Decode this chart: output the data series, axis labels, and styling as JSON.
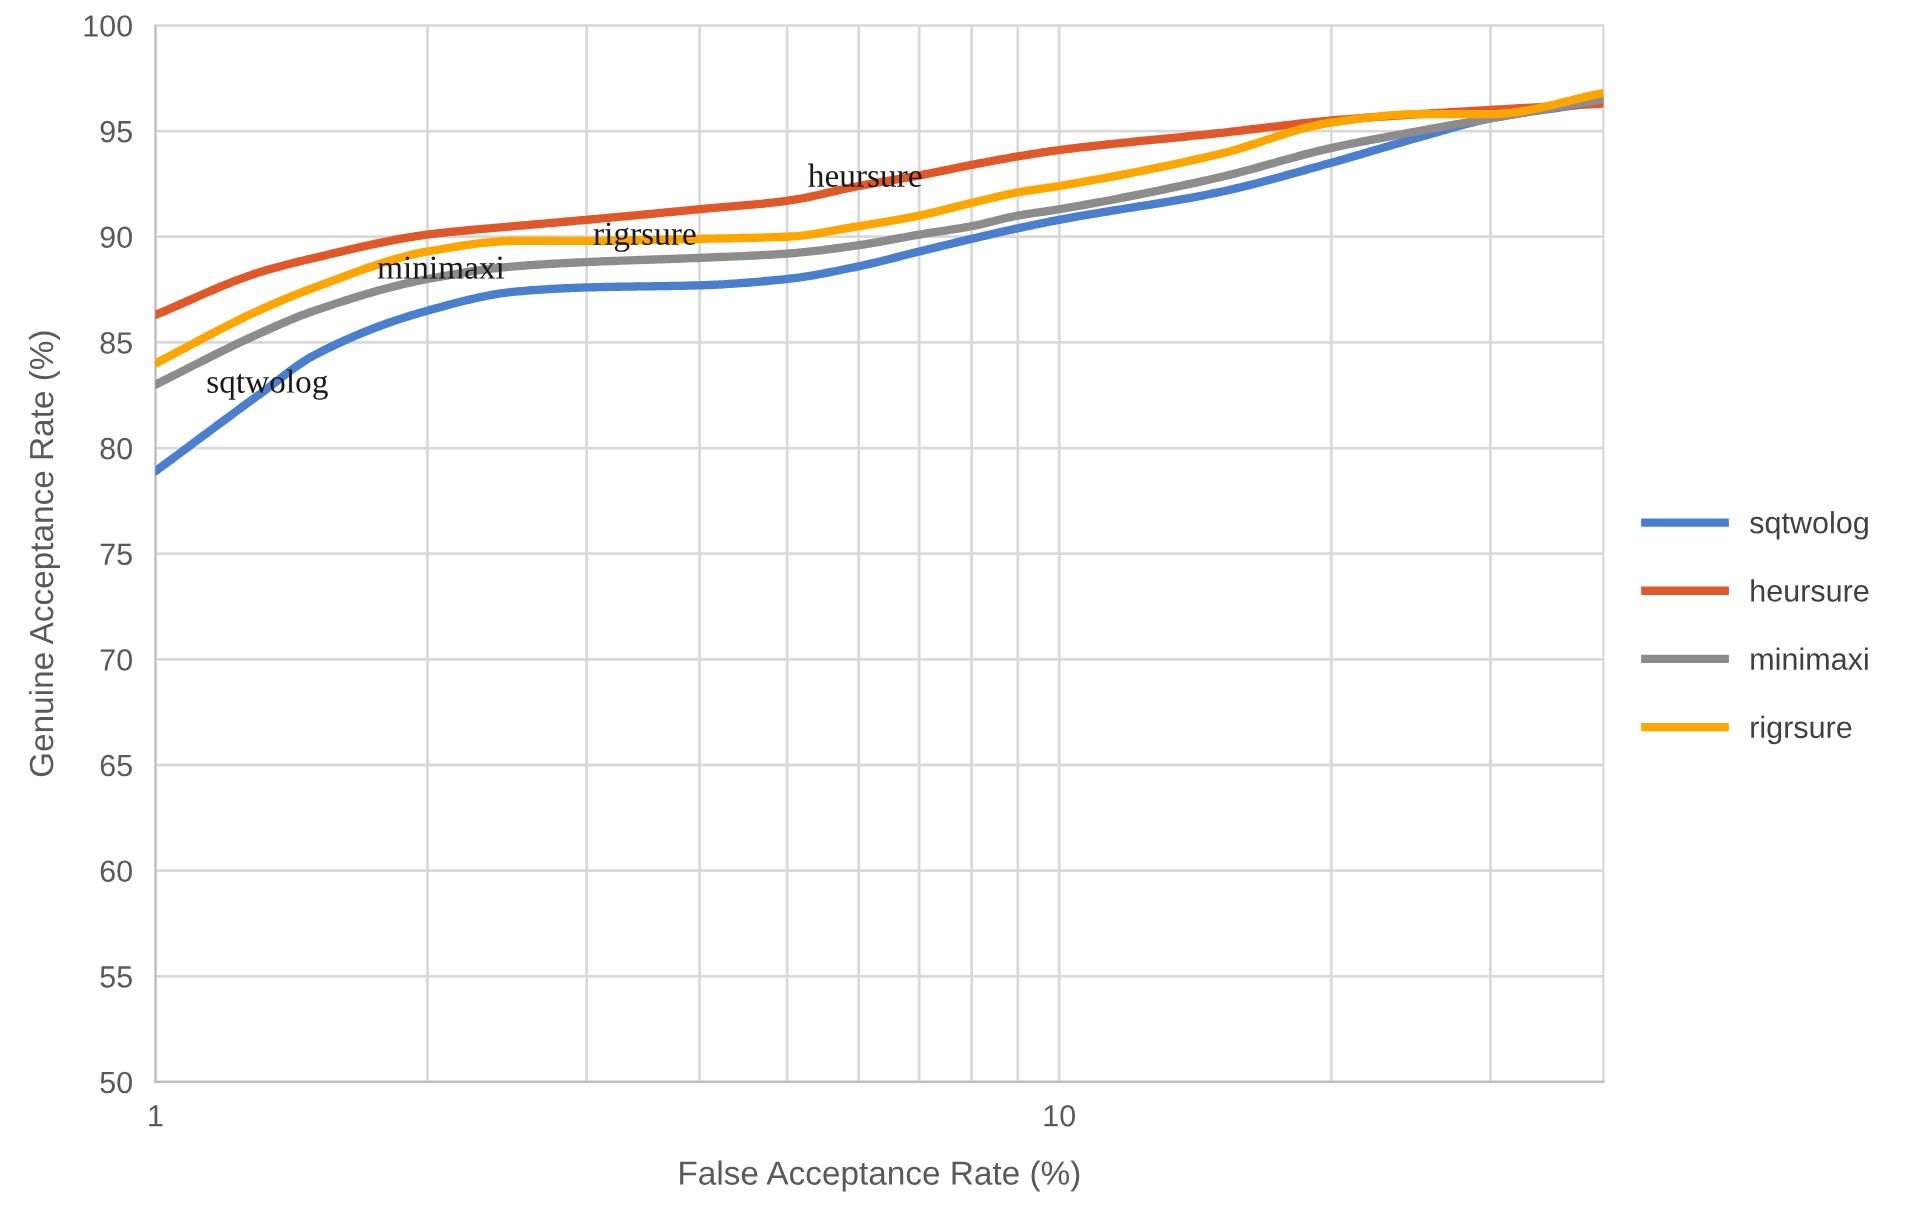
{
  "chart_data": {
    "type": "line",
    "xlabel": "False Acceptance Rate (%)",
    "ylabel": "Genuine Acceptance Rate (%)",
    "x": [
      1,
      1.3,
      1.5,
      2,
      2.5,
      3,
      4,
      5,
      6,
      7,
      8,
      9,
      10,
      15,
      20,
      25,
      30,
      40
    ],
    "series": [
      {
        "name": "sqtwolog",
        "color": "#4a7fcf",
        "values": [
          78.9,
          82.5,
          84.4,
          86.5,
          87.4,
          87.6,
          87.7,
          88.0,
          88.6,
          89.3,
          89.9,
          90.4,
          90.8,
          92.1,
          93.5,
          94.7,
          95.6,
          96.4
        ]
      },
      {
        "name": "heursure",
        "color": "#e0572a",
        "values": [
          86.3,
          88.3,
          89.0,
          90.1,
          90.5,
          90.8,
          91.3,
          91.7,
          92.4,
          92.9,
          93.4,
          93.8,
          94.1,
          94.9,
          95.5,
          95.8,
          96.0,
          96.3
        ]
      },
      {
        "name": "minimaxi",
        "color": "#8c8c8c",
        "values": [
          83.0,
          85.4,
          86.5,
          88.0,
          88.6,
          88.8,
          89.0,
          89.2,
          89.6,
          90.1,
          90.5,
          91.0,
          91.3,
          92.8,
          94.2,
          95.0,
          95.6,
          96.5
        ]
      },
      {
        "name": "rigrsure",
        "color": "#ffa500",
        "values": [
          84.0,
          86.5,
          87.6,
          89.3,
          89.8,
          89.8,
          89.9,
          90.0,
          90.5,
          91.0,
          91.6,
          92.1,
          92.4,
          93.9,
          95.4,
          95.8,
          95.8,
          96.8
        ]
      }
    ],
    "xlim": [
      1,
      40
    ],
    "ylim": [
      50,
      100
    ],
    "xticks": [
      1,
      {
        "value": 2,
        "label": null
      },
      {
        "value": 3,
        "label": null
      },
      {
        "value": 4,
        "label": null
      },
      {
        "value": 5,
        "label": null
      },
      {
        "value": 6,
        "label": null
      },
      {
        "value": 7,
        "label": null
      },
      {
        "value": 8,
        "label": null
      },
      {
        "value": 9,
        "label": null
      },
      10,
      {
        "value": 20,
        "label": null
      },
      {
        "value": 30,
        "label": null
      }
    ],
    "yticks": [
      50,
      55,
      60,
      65,
      70,
      75,
      80,
      85,
      90,
      95,
      100
    ],
    "log": "x",
    "grid": true,
    "legend": "right",
    "marker": "none",
    "line_style": "solid",
    "annotations": [
      {
        "text": "heursure",
        "x": 6.1,
        "y": 92.75
      },
      {
        "text": "rigrsure",
        "x": 3.48,
        "y": 90.0
      },
      {
        "text": "minimaxi",
        "x": 2.07,
        "y": 88.4
      },
      {
        "text": "sqtwolog",
        "x": 1.33,
        "y": 83.0
      }
    ]
  }
}
